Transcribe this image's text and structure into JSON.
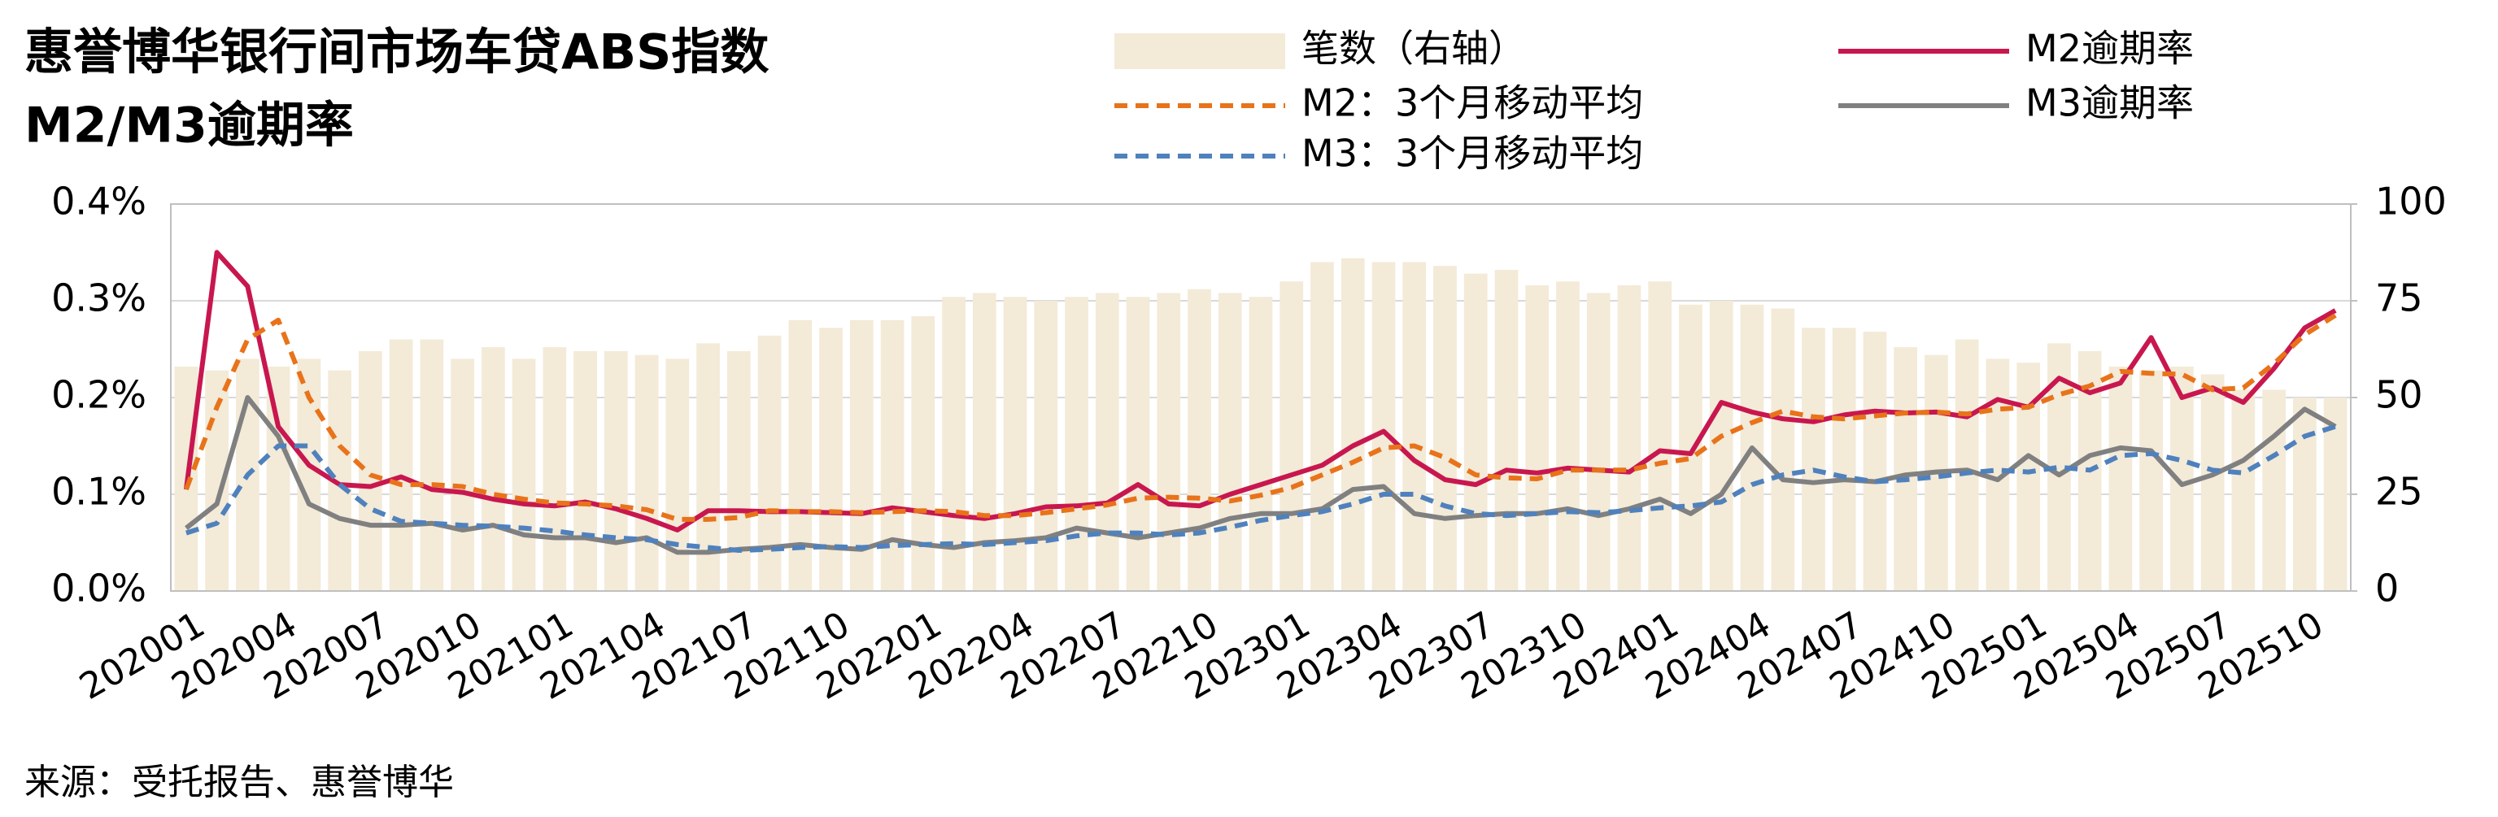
{
  "chart_data": {
    "type": "bar-line",
    "title": "惠誉博华银行间市场车贷ABS指数",
    "subtitle": "M2/M3逾期率",
    "source": "来源：受托报告、惠誉博华",
    "legend": "top",
    "grid": true,
    "categories": [
      "202001",
      null,
      null,
      "202004",
      null,
      null,
      "202007",
      null,
      null,
      "202010",
      null,
      null,
      "202101",
      null,
      null,
      "202104",
      null,
      null,
      "202107",
      null,
      null,
      "202110",
      null,
      null,
      "202201",
      null,
      null,
      "202204",
      null,
      null,
      "202207",
      null,
      null,
      "202210",
      null,
      null,
      "202301",
      null,
      null,
      "202304",
      null,
      null,
      "202307",
      null,
      null,
      "202310",
      null,
      null,
      "202401",
      null,
      null,
      "202404",
      null,
      null,
      "202407",
      null,
      null,
      "202410",
      null,
      null,
      "202501",
      null,
      null,
      "202504",
      null,
      null,
      "202507",
      null,
      null,
      "202510",
      null
    ],
    "ylim": [
      0,
      0.4
    ],
    "yticks": [
      {
        "value": 0,
        "label": "0.0%"
      },
      {
        "value": 0.1,
        "label": "0.1%"
      },
      {
        "value": 0.2,
        "label": "0.2%"
      },
      {
        "value": 0.3,
        "label": "0.3%"
      },
      {
        "value": 0.4,
        "label": "0.4%"
      }
    ],
    "y2lim": [
      0,
      100
    ],
    "y2ticks": [
      0,
      25,
      50,
      75,
      100
    ],
    "series": [
      {
        "name": "笔数（右轴）",
        "type": "bar",
        "axis": "y2",
        "color": "#f3ead8",
        "values": [
          58,
          57,
          60,
          58,
          60,
          57,
          62,
          65,
          65,
          60,
          63,
          60,
          63,
          62,
          62,
          61,
          60,
          64,
          62,
          66,
          70,
          68,
          70,
          70,
          71,
          76,
          77,
          76,
          75,
          76,
          77,
          76,
          77,
          78,
          77,
          76,
          80,
          85,
          86,
          85,
          85,
          84,
          82,
          83,
          79,
          80,
          77,
          79,
          80,
          74,
          75,
          74,
          73,
          68,
          68,
          67,
          63,
          61,
          65,
          60,
          59,
          64,
          62,
          58,
          57,
          58,
          56,
          52,
          52,
          50,
          50
        ]
      },
      {
        "name": "M2逾期率",
        "type": "line",
        "color": "#c8174f",
        "style": "solid",
        "values": [
          0.105,
          0.35,
          0.315,
          0.17,
          0.13,
          0.11,
          0.108,
          0.118,
          0.105,
          0.102,
          0.095,
          0.09,
          0.088,
          0.092,
          0.085,
          0.075,
          0.063,
          0.083,
          0.083,
          0.082,
          0.082,
          0.081,
          0.08,
          0.086,
          0.082,
          0.078,
          0.075,
          0.08,
          0.087,
          0.088,
          0.091,
          0.11,
          0.09,
          0.088,
          0.1,
          0.11,
          0.12,
          0.13,
          0.15,
          0.165,
          0.135,
          0.115,
          0.11,
          0.125,
          0.122,
          0.127,
          0.125,
          0.123,
          0.145,
          0.142,
          0.195,
          0.185,
          0.178,
          0.175,
          0.182,
          0.186,
          0.184,
          0.185,
          0.18,
          0.198,
          0.19,
          0.22,
          0.205,
          0.215,
          0.262,
          0.2,
          0.21,
          0.195,
          0.23,
          0.272,
          0.29
        ]
      },
      {
        "name": "M2：3个月移动平均",
        "type": "line",
        "color": "#e8731a",
        "style": "dashed",
        "values": [
          0.105,
          0.19,
          0.26,
          0.28,
          0.2,
          0.15,
          0.12,
          0.11,
          0.11,
          0.108,
          0.1,
          0.095,
          0.091,
          0.09,
          0.088,
          0.084,
          0.074,
          0.074,
          0.076,
          0.083,
          0.082,
          0.082,
          0.081,
          0.082,
          0.083,
          0.082,
          0.078,
          0.078,
          0.081,
          0.085,
          0.089,
          0.096,
          0.097,
          0.096,
          0.093,
          0.099,
          0.107,
          0.12,
          0.133,
          0.148,
          0.15,
          0.138,
          0.12,
          0.117,
          0.116,
          0.125,
          0.125,
          0.125,
          0.132,
          0.137,
          0.16,
          0.174,
          0.186,
          0.18,
          0.178,
          0.181,
          0.184,
          0.185,
          0.183,
          0.188,
          0.19,
          0.203,
          0.212,
          0.227,
          0.225,
          0.224,
          0.208,
          0.21,
          0.235,
          0.265,
          0.285
        ]
      },
      {
        "name": "M3逾期率",
        "type": "line",
        "color": "#808080",
        "style": "solid",
        "values": [
          0.065,
          0.09,
          0.2,
          0.16,
          0.09,
          0.075,
          0.068,
          0.068,
          0.07,
          0.063,
          0.068,
          0.058,
          0.055,
          0.055,
          0.05,
          0.055,
          0.04,
          0.04,
          0.043,
          0.045,
          0.048,
          0.045,
          0.043,
          0.053,
          0.048,
          0.045,
          0.05,
          0.052,
          0.055,
          0.065,
          0.06,
          0.055,
          0.06,
          0.065,
          0.075,
          0.08,
          0.08,
          0.085,
          0.105,
          0.108,
          0.08,
          0.075,
          0.078,
          0.08,
          0.08,
          0.085,
          0.078,
          0.085,
          0.095,
          0.08,
          0.1,
          0.148,
          0.115,
          0.112,
          0.115,
          0.113,
          0.12,
          0.123,
          0.125,
          0.115,
          0.14,
          0.12,
          0.14,
          0.148,
          0.145,
          0.11,
          0.12,
          0.135,
          0.16,
          0.188,
          0.17
        ]
      },
      {
        "name": "M3：3个月移动平均",
        "type": "line",
        "color": "#4f81bd",
        "style": "dashed",
        "values": [
          0.06,
          0.07,
          0.12,
          0.15,
          0.15,
          0.11,
          0.085,
          0.072,
          0.07,
          0.068,
          0.067,
          0.065,
          0.062,
          0.058,
          0.055,
          0.053,
          0.048,
          0.045,
          0.042,
          0.043,
          0.045,
          0.046,
          0.045,
          0.047,
          0.048,
          0.049,
          0.048,
          0.05,
          0.052,
          0.057,
          0.06,
          0.06,
          0.058,
          0.06,
          0.066,
          0.073,
          0.078,
          0.082,
          0.09,
          0.1,
          0.1,
          0.088,
          0.08,
          0.078,
          0.08,
          0.082,
          0.081,
          0.083,
          0.086,
          0.088,
          0.092,
          0.11,
          0.12,
          0.125,
          0.118,
          0.113,
          0.115,
          0.118,
          0.122,
          0.125,
          0.123,
          0.128,
          0.125,
          0.14,
          0.142,
          0.135,
          0.125,
          0.122,
          0.14,
          0.16,
          0.17
        ]
      }
    ]
  }
}
